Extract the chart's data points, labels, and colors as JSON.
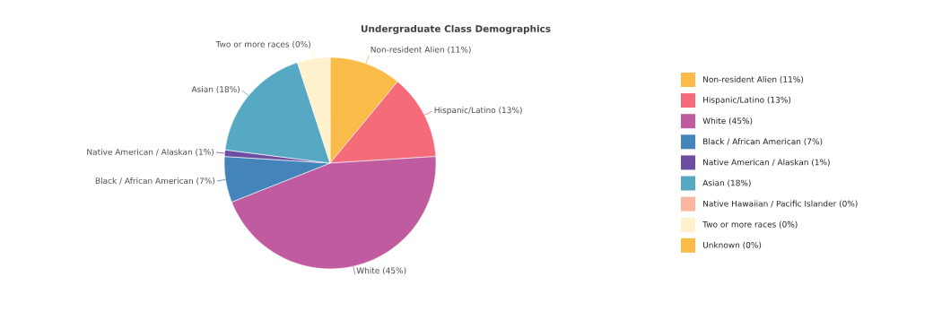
{
  "chart_data": {
    "type": "pie",
    "title": "Undergraduate Class Demographics",
    "categories": [
      "Non-resident Alien (11%)",
      "Hispanic/Latino (13%)",
      "White (45%)",
      "Black / African American (7%)",
      "Native American / Alaskan (1%)",
      "Asian (18%)",
      "Native Hawaiian / Pacific Islander (0%)",
      "Two or more races (0%)",
      "Unknown (0%)"
    ],
    "values": [
      11,
      13,
      45,
      7,
      1,
      18,
      0,
      5,
      0
    ],
    "colors": [
      "#fbbb48",
      "#f56b7a",
      "#bf5b9e",
      "#4385bb",
      "#6c4fa0",
      "#57a8c2",
      "#f9b7a0",
      "#fff1cc",
      "#fbbb48"
    ],
    "legend": "right"
  }
}
